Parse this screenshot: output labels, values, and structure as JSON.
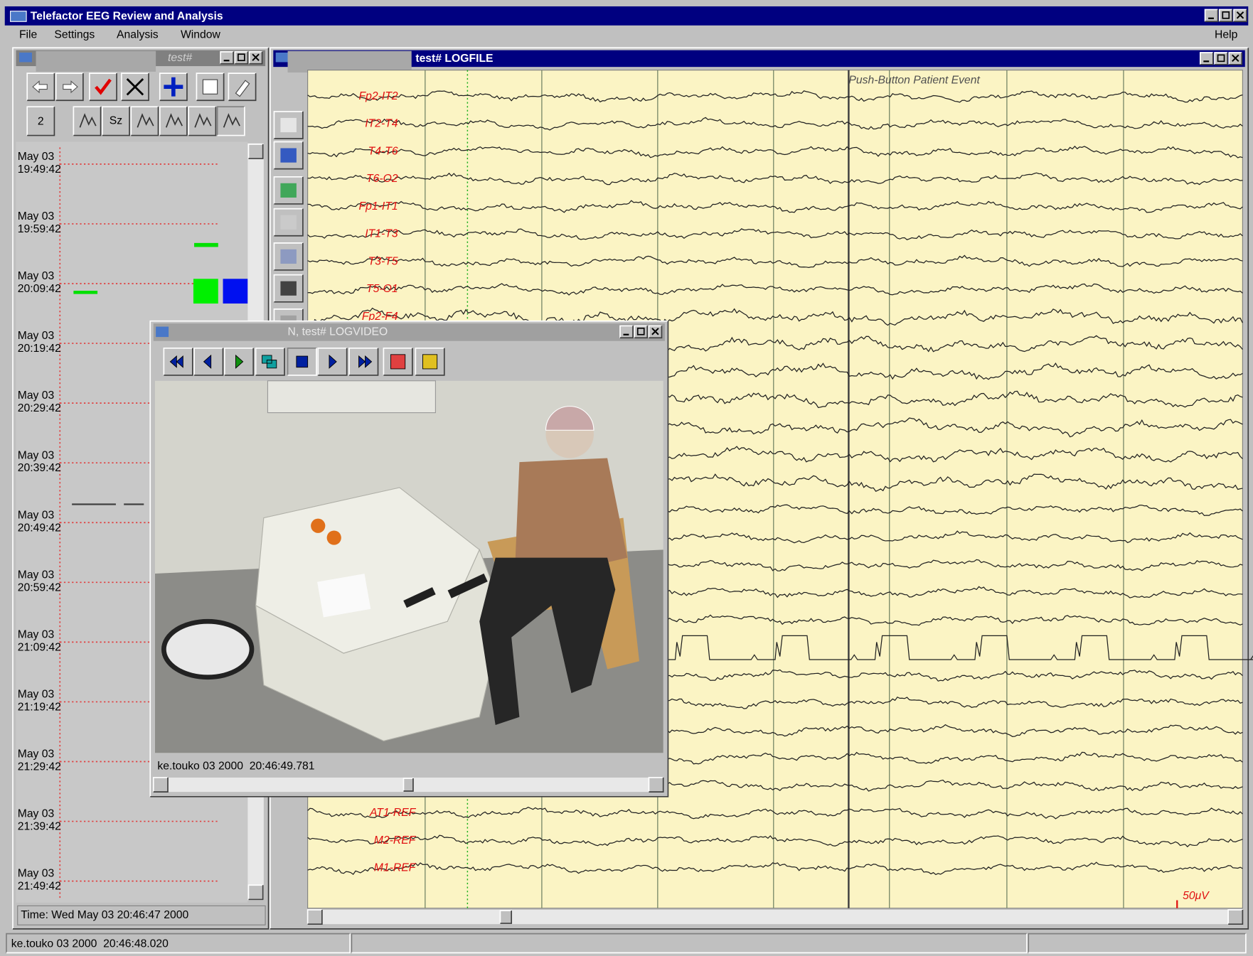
{
  "app_title": "Telefactor EEG Review and Analysis",
  "menu": [
    "File",
    "Settings",
    "Analysis",
    "Window"
  ],
  "help": "Help",
  "event_window": {
    "title": "test#",
    "montage_button": "2",
    "seizure_button": "Sz",
    "timeline": [
      {
        "date": "May 03",
        "time": "19:49:42"
      },
      {
        "date": "May 03",
        "time": "19:59:42"
      },
      {
        "date": "May 03",
        "time": "20:09:42"
      },
      {
        "date": "May 03",
        "time": "20:19:42"
      },
      {
        "date": "May 03",
        "time": "20:29:42"
      },
      {
        "date": "May 03",
        "time": "20:39:42"
      },
      {
        "date": "May 03",
        "time": "20:49:42"
      },
      {
        "date": "May 03",
        "time": "20:59:42"
      },
      {
        "date": "May 03",
        "time": "21:09:42"
      },
      {
        "date": "May 03",
        "time": "21:19:42"
      },
      {
        "date": "May 03",
        "time": "21:29:42"
      },
      {
        "date": "May 03",
        "time": "21:39:42"
      },
      {
        "date": "May 03",
        "time": "21:49:42"
      }
    ],
    "status": "Time: Wed May 03 20:46:47 2000"
  },
  "eeg_window": {
    "title": "test# LOGFILE",
    "annotation": "Push-Button Patient Event",
    "channels_top": [
      "Fp2-IT2",
      "IT2-T4",
      "T4-T6",
      "T6-O2",
      "Fp1-IT1",
      "IT1-T3",
      "T3-T5",
      "T5-O1",
      "Fp2-F4"
    ],
    "channels_bottom": [
      "AT1-REF",
      "M2-REF",
      "M1-REF"
    ],
    "scale": "50μV"
  },
  "video_window": {
    "title": "N, test# LOGVIDEO",
    "caption": "ke.touko 03 2000  20:46:49.781"
  },
  "status_bar": "ke.touko 03 2000  20:46:48.020"
}
